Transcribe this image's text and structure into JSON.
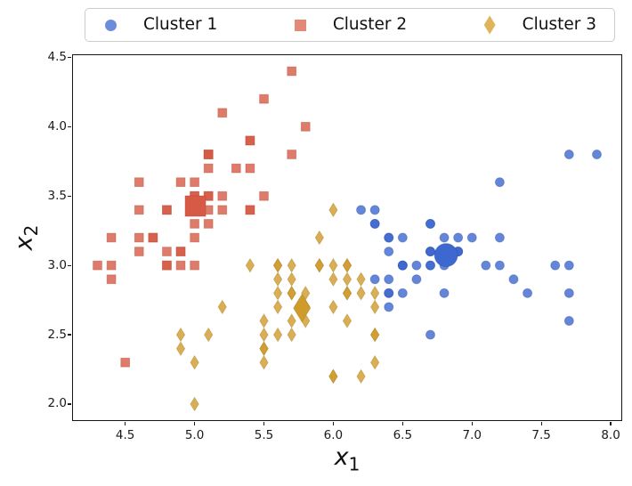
{
  "legend": {
    "items": [
      {
        "label": "Cluster 1",
        "marker": "circle",
        "color": "#6E8CDE"
      },
      {
        "label": "Cluster 2",
        "marker": "square",
        "color": "#E2range"
      },
      {
        "label": "Cluster 3",
        "marker": "diamond",
        "color": "#DFB55C"
      }
    ]
  },
  "chart_data": {
    "type": "scatter",
    "title": "",
    "xlabel": {
      "base": "x",
      "sub": "1"
    },
    "ylabel": {
      "base": "x",
      "sub": "2"
    },
    "xlim": [
      4.117,
      8.083
    ],
    "ylim": [
      1.878,
      4.522
    ],
    "xticks": [
      4.5,
      5.0,
      5.5,
      6.0,
      6.5,
      7.0,
      7.5,
      8.0
    ],
    "yticks": [
      2.0,
      2.5,
      3.0,
      3.5,
      4.0,
      4.5
    ],
    "grid": false,
    "legend_position": "top",
    "series": [
      {
        "name": "Cluster 1",
        "marker": "circle",
        "fill": "#3D68D0",
        "edge": "#2C4FA8",
        "swatch": "#6E8CDE",
        "centroid": [
          6.813,
          3.074
        ],
        "points": [
          [
            7.0,
            3.2
          ],
          [
            6.4,
            3.2
          ],
          [
            6.9,
            3.1
          ],
          [
            6.5,
            2.8
          ],
          [
            6.3,
            3.3
          ],
          [
            6.6,
            2.9
          ],
          [
            6.7,
            3.1
          ],
          [
            6.4,
            2.9
          ],
          [
            6.6,
            3.0
          ],
          [
            6.8,
            2.8
          ],
          [
            6.7,
            3.0
          ],
          [
            6.7,
            3.1
          ],
          [
            6.3,
            3.3
          ],
          [
            7.1,
            3.0
          ],
          [
            6.3,
            2.9
          ],
          [
            6.5,
            3.0
          ],
          [
            7.6,
            3.0
          ],
          [
            7.3,
            2.9
          ],
          [
            6.7,
            2.5
          ],
          [
            7.2,
            3.6
          ],
          [
            6.5,
            3.2
          ],
          [
            6.4,
            2.7
          ],
          [
            6.8,
            3.0
          ],
          [
            6.4,
            3.2
          ],
          [
            6.5,
            3.0
          ],
          [
            7.7,
            3.8
          ],
          [
            7.7,
            2.6
          ],
          [
            6.9,
            3.2
          ],
          [
            7.7,
            2.8
          ],
          [
            6.7,
            3.3
          ],
          [
            7.2,
            3.2
          ],
          [
            6.4,
            2.8
          ],
          [
            7.2,
            3.0
          ],
          [
            7.4,
            2.8
          ],
          [
            7.9,
            3.8
          ],
          [
            6.4,
            2.8
          ],
          [
            7.7,
            3.0
          ],
          [
            6.3,
            3.4
          ],
          [
            6.4,
            3.1
          ],
          [
            6.9,
            3.1
          ],
          [
            6.7,
            3.1
          ],
          [
            6.9,
            3.1
          ],
          [
            6.8,
            3.2
          ],
          [
            6.7,
            3.3
          ],
          [
            6.7,
            3.0
          ],
          [
            6.5,
            3.0
          ],
          [
            6.2,
            3.4
          ]
        ]
      },
      {
        "name": "Cluster 2",
        "marker": "square",
        "fill": "#D65A45",
        "edge": "#B4492F",
        "swatch": "#E28977",
        "centroid": [
          5.006,
          3.428
        ],
        "points": [
          [
            5.1,
            3.5
          ],
          [
            4.9,
            3.0
          ],
          [
            4.7,
            3.2
          ],
          [
            4.6,
            3.1
          ],
          [
            5.0,
            3.6
          ],
          [
            5.4,
            3.9
          ],
          [
            4.6,
            3.4
          ],
          [
            5.0,
            3.4
          ],
          [
            4.4,
            2.9
          ],
          [
            4.9,
            3.1
          ],
          [
            5.4,
            3.7
          ],
          [
            4.8,
            3.4
          ],
          [
            4.8,
            3.0
          ],
          [
            4.3,
            3.0
          ],
          [
            5.8,
            4.0
          ],
          [
            5.7,
            4.4
          ],
          [
            5.4,
            3.9
          ],
          [
            5.1,
            3.5
          ],
          [
            5.7,
            3.8
          ],
          [
            5.1,
            3.8
          ],
          [
            5.4,
            3.4
          ],
          [
            5.1,
            3.7
          ],
          [
            4.6,
            3.6
          ],
          [
            5.1,
            3.3
          ],
          [
            4.8,
            3.4
          ],
          [
            5.0,
            3.0
          ],
          [
            5.0,
            3.4
          ],
          [
            5.2,
            3.5
          ],
          [
            5.2,
            3.4
          ],
          [
            4.7,
            3.2
          ],
          [
            4.8,
            3.1
          ],
          [
            5.4,
            3.4
          ],
          [
            5.2,
            4.1
          ],
          [
            5.5,
            4.2
          ],
          [
            4.9,
            3.1
          ],
          [
            5.0,
            3.2
          ],
          [
            5.5,
            3.5
          ],
          [
            4.9,
            3.6
          ],
          [
            4.4,
            3.0
          ],
          [
            5.1,
            3.4
          ],
          [
            5.0,
            3.5
          ],
          [
            4.5,
            2.3
          ],
          [
            4.4,
            3.2
          ],
          [
            5.0,
            3.5
          ],
          [
            5.1,
            3.8
          ],
          [
            4.8,
            3.0
          ],
          [
            5.1,
            3.8
          ],
          [
            4.6,
            3.2
          ],
          [
            5.3,
            3.7
          ],
          [
            5.0,
            3.3
          ]
        ]
      },
      {
        "name": "Cluster 3",
        "marker": "diamond",
        "fill": "#CF9B2A",
        "edge": "#A87D1D",
        "swatch": "#DFB55C",
        "centroid": [
          5.774,
          2.692
        ],
        "points": [
          [
            5.5,
            2.3
          ],
          [
            5.7,
            2.8
          ],
          [
            4.9,
            2.4
          ],
          [
            5.2,
            2.7
          ],
          [
            5.0,
            2.0
          ],
          [
            5.9,
            3.0
          ],
          [
            6.0,
            2.2
          ],
          [
            6.1,
            2.9
          ],
          [
            5.6,
            2.9
          ],
          [
            5.6,
            3.0
          ],
          [
            5.8,
            2.7
          ],
          [
            6.2,
            2.2
          ],
          [
            5.6,
            2.5
          ],
          [
            5.9,
            3.2
          ],
          [
            6.1,
            2.8
          ],
          [
            6.3,
            2.5
          ],
          [
            6.1,
            2.8
          ],
          [
            6.0,
            2.9
          ],
          [
            5.7,
            2.6
          ],
          [
            5.5,
            2.4
          ],
          [
            5.5,
            2.4
          ],
          [
            5.8,
            2.7
          ],
          [
            6.0,
            2.7
          ],
          [
            5.4,
            3.0
          ],
          [
            6.0,
            3.4
          ],
          [
            6.3,
            2.3
          ],
          [
            5.6,
            3.0
          ],
          [
            5.5,
            2.5
          ],
          [
            5.5,
            2.6
          ],
          [
            6.1,
            3.0
          ],
          [
            5.8,
            2.6
          ],
          [
            5.0,
            2.3
          ],
          [
            5.6,
            2.7
          ],
          [
            5.7,
            3.0
          ],
          [
            5.7,
            2.9
          ],
          [
            6.2,
            2.9
          ],
          [
            5.1,
            2.5
          ],
          [
            5.7,
            2.8
          ],
          [
            5.8,
            2.7
          ],
          [
            4.9,
            2.5
          ],
          [
            5.7,
            2.5
          ],
          [
            5.8,
            2.8
          ],
          [
            6.0,
            2.2
          ],
          [
            5.6,
            2.8
          ],
          [
            6.3,
            2.7
          ],
          [
            6.2,
            2.8
          ],
          [
            6.1,
            3.0
          ],
          [
            6.3,
            2.8
          ],
          [
            6.1,
            2.6
          ],
          [
            6.0,
            3.0
          ],
          [
            5.8,
            2.7
          ],
          [
            6.3,
            2.5
          ],
          [
            5.9,
            3.0
          ]
        ]
      }
    ]
  }
}
